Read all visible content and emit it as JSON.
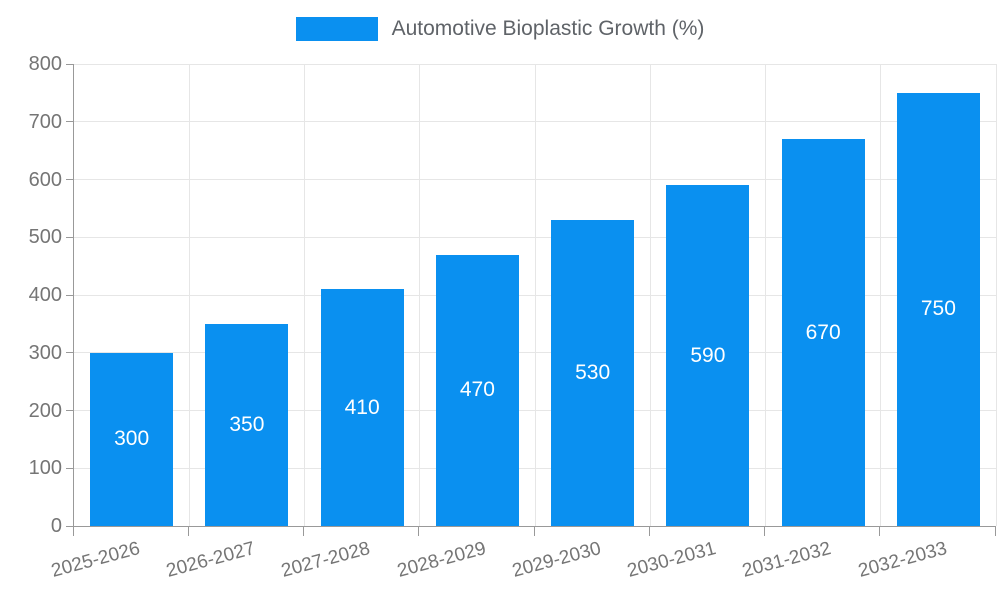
{
  "legend": {
    "label": "Automotive Bioplastic Growth (%)"
  },
  "chart_data": {
    "type": "bar",
    "title": "Automotive Bioplastic Growth (%)",
    "categories": [
      "2025-2026",
      "2026-2027",
      "2027-2028",
      "2028-2029",
      "2029-2030",
      "2030-2031",
      "2031-2032",
      "2032-2033"
    ],
    "values": [
      300,
      350,
      410,
      470,
      530,
      590,
      670,
      750
    ],
    "bar_labels": [
      "300",
      "350",
      "410",
      "470",
      "530",
      "590",
      "670",
      "750"
    ],
    "xlabel": "",
    "ylabel": "",
    "ylim": [
      0,
      800
    ],
    "yticks": [
      0,
      100,
      200,
      300,
      400,
      500,
      600,
      700,
      800
    ],
    "grid": true,
    "legend_position": "top-center",
    "colors": {
      "bar": "#0a90f0",
      "bar_label": "#ffffff",
      "grid": "#e6e6e6",
      "axis": "#999999",
      "tick_label": "#757575",
      "legend_text": "#5f6368",
      "background": "#ffffff"
    }
  }
}
